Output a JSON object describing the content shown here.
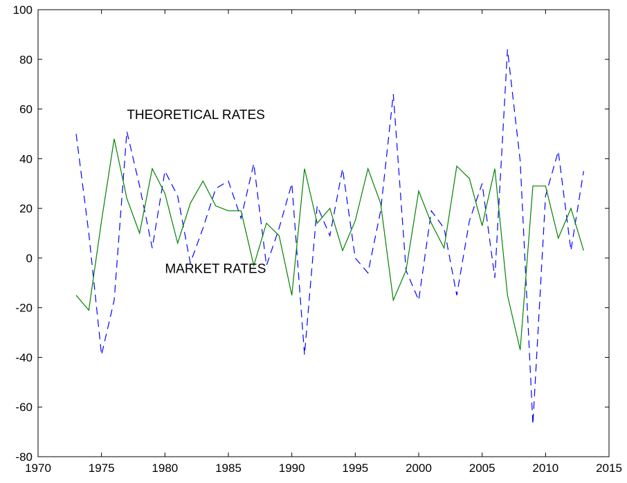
{
  "chart_data": {
    "type": "line",
    "xlim": [
      1970,
      2015
    ],
    "ylim": [
      -80,
      100
    ],
    "xticks": [
      1970,
      1975,
      1980,
      1985,
      1990,
      1995,
      2000,
      2005,
      2010,
      2015
    ],
    "yticks": [
      -80,
      -60,
      -40,
      -20,
      0,
      20,
      40,
      60,
      80,
      100
    ],
    "grid": false,
    "annotations": [
      {
        "text": "THEORETICAL RATES",
        "x": 1977,
        "y": 56
      },
      {
        "text": "MARKET RATES",
        "x": 1980,
        "y": -6
      }
    ],
    "series": [
      {
        "color": "#0000ff",
        "style": "dashed",
        "x": [
          1973,
          1974,
          1975,
          1976,
          1977,
          1978,
          1979,
          1980,
          1981,
          1982,
          1983,
          1984,
          1985,
          1986,
          1987,
          1988,
          1989,
          1990,
          1991,
          1992,
          1993,
          1994,
          1995,
          1996,
          1997,
          1998,
          1999,
          2000,
          2001,
          2002,
          2003,
          2004,
          2005,
          2006,
          2007,
          2008,
          2009,
          2010,
          2011,
          2012,
          2013
        ],
        "values": [
          50,
          10,
          -39,
          -17,
          51,
          29,
          4,
          35,
          25,
          -2,
          12,
          28,
          31,
          16,
          38,
          -3,
          12,
          30,
          -39,
          21,
          9,
          36,
          0,
          -6,
          19,
          66,
          -5,
          -17,
          19,
          12,
          -15,
          15,
          30,
          -8,
          84,
          39,
          -67,
          25,
          43,
          3,
          35
        ]
      },
      {
        "color": "#008000",
        "style": "solid",
        "x": [
          1973,
          1974,
          1975,
          1976,
          1977,
          1978,
          1979,
          1980,
          1981,
          1982,
          1983,
          1984,
          1985,
          1986,
          1987,
          1988,
          1989,
          1990,
          1991,
          1992,
          1993,
          1994,
          1995,
          1996,
          1997,
          1998,
          1999,
          2000,
          2001,
          2002,
          2003,
          2004,
          2005,
          2006,
          2007,
          2008,
          2009,
          2010,
          2011,
          2012,
          2013
        ],
        "values": [
          -15,
          -21,
          15,
          48,
          24,
          10,
          36,
          26,
          6,
          22,
          31,
          21,
          19,
          19,
          -3,
          14,
          9,
          -15,
          36,
          14,
          20,
          3,
          15,
          36,
          22,
          -17,
          -5,
          27,
          14,
          4,
          37,
          32,
          13,
          36,
          -15,
          -37,
          29,
          29,
          8,
          20,
          3
        ]
      }
    ]
  }
}
